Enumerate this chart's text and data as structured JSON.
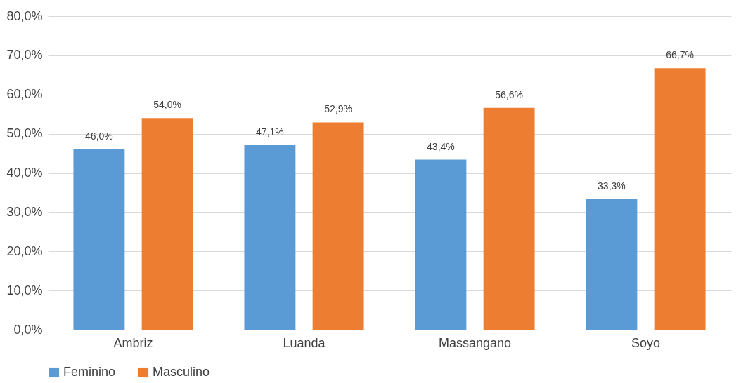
{
  "chart_data": {
    "type": "bar",
    "categories": [
      "Ambriz",
      "Luanda",
      "Massangano",
      "Soyo"
    ],
    "series": [
      {
        "name": "Feminino",
        "color": "#5b9bd5",
        "values": [
          46.0,
          47.1,
          43.4,
          33.3
        ],
        "value_labels": [
          "46,0%",
          "47,1%",
          "43,4%",
          "33,3%"
        ]
      },
      {
        "name": "Masculino",
        "color": "#ed7d31",
        "values": [
          54.0,
          52.9,
          56.6,
          66.7
        ],
        "value_labels": [
          "54,0%",
          "52,9%",
          "56,6%",
          "66,7%"
        ]
      }
    ],
    "ylim": [
      0,
      80
    ],
    "yticks": [
      {
        "value": 0,
        "label": "0,0%"
      },
      {
        "value": 10,
        "label": "10,0%"
      },
      {
        "value": 20,
        "label": "20,0%"
      },
      {
        "value": 30,
        "label": "30,0%"
      },
      {
        "value": 40,
        "label": "40,0%"
      },
      {
        "value": 50,
        "label": "50,0%"
      },
      {
        "value": 60,
        "label": "60,0%"
      },
      {
        "value": 70,
        "label": "70,0%"
      },
      {
        "value": 80,
        "label": "80,0%"
      }
    ],
    "grid": "y",
    "legend": "bottom"
  }
}
